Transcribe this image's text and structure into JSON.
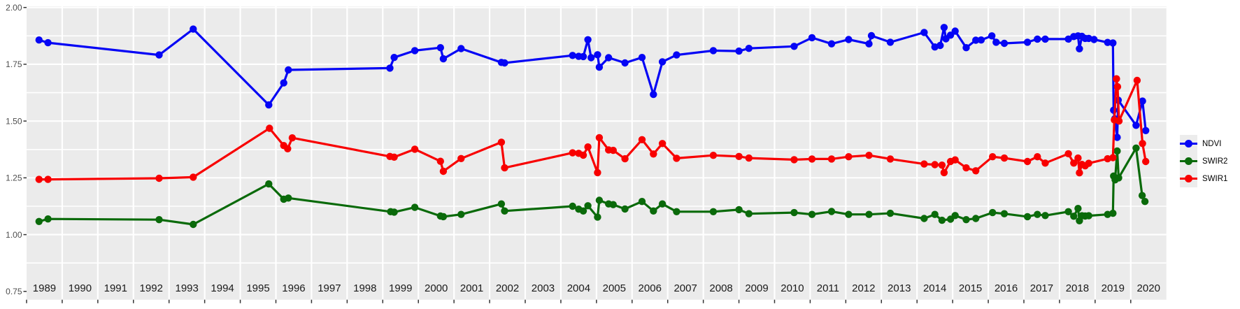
{
  "chart_data": {
    "type": "line",
    "title": "",
    "xlabel": "",
    "ylabel": "",
    "grid": true,
    "legend_position": "right",
    "x_axis": {
      "tick_labels": [
        "1989",
        "1990",
        "1991",
        "1992",
        "1993",
        "1994",
        "1995",
        "1996",
        "1997",
        "1998",
        "1999",
        "2000",
        "2001",
        "2002",
        "2003",
        "2004",
        "2005",
        "2006",
        "2007",
        "2008",
        "2009",
        "2010",
        "2011",
        "2012",
        "2013",
        "2014",
        "2015",
        "2016",
        "2017",
        "2018",
        "2019",
        "2020"
      ],
      "range": [
        1989,
        2021
      ]
    },
    "y_axis": {
      "tick_labels": [
        "2.00",
        "1.75",
        "1.50",
        "1.25",
        "1.00",
        "0.75"
      ],
      "tick_values": [
        2.0,
        1.75,
        1.5,
        1.25,
        1.0,
        0.75
      ],
      "major_gridlines": [
        2.0,
        1.75,
        1.5,
        1.25,
        1.0
      ],
      "minor_gridlines": [
        1.875,
        1.625,
        1.375,
        1.125,
        0.875
      ],
      "range": [
        0.72,
        2.0
      ]
    },
    "series": [
      {
        "name": "NDVI",
        "color": "#0505F5",
        "points": [
          [
            1989.35,
            1.857
          ],
          [
            1989.6,
            1.845
          ],
          [
            1992.72,
            1.791
          ],
          [
            1993.68,
            1.905
          ],
          [
            1995.8,
            1.571
          ],
          [
            1996.22,
            1.668
          ],
          [
            1996.35,
            1.725
          ],
          [
            1999.2,
            1.733
          ],
          [
            1999.32,
            1.78
          ],
          [
            1999.9,
            1.81
          ],
          [
            2000.62,
            1.823
          ],
          [
            2000.7,
            1.774
          ],
          [
            2001.2,
            1.819
          ],
          [
            2002.33,
            1.758
          ],
          [
            2002.42,
            1.756
          ],
          [
            2004.33,
            1.789
          ],
          [
            2004.5,
            1.785
          ],
          [
            2004.63,
            1.784
          ],
          [
            2004.76,
            1.858
          ],
          [
            2004.85,
            1.779
          ],
          [
            2005.03,
            1.792
          ],
          [
            2005.08,
            1.737
          ],
          [
            2005.34,
            1.779
          ],
          [
            2005.8,
            1.756
          ],
          [
            2006.28,
            1.78
          ],
          [
            2006.6,
            1.617
          ],
          [
            2006.85,
            1.761
          ],
          [
            2007.25,
            1.791
          ],
          [
            2008.28,
            1.81
          ],
          [
            2009.0,
            1.808
          ],
          [
            2009.28,
            1.82
          ],
          [
            2010.55,
            1.829
          ],
          [
            2011.05,
            1.867
          ],
          [
            2011.6,
            1.84
          ],
          [
            2012.08,
            1.859
          ],
          [
            2012.65,
            1.84
          ],
          [
            2012.72,
            1.876
          ],
          [
            2013.25,
            1.847
          ],
          [
            2014.2,
            1.89
          ],
          [
            2014.5,
            1.826
          ],
          [
            2014.65,
            1.833
          ],
          [
            2014.76,
            1.912
          ],
          [
            2014.81,
            1.862
          ],
          [
            2014.94,
            1.878
          ],
          [
            2015.07,
            1.896
          ],
          [
            2015.38,
            1.823
          ],
          [
            2015.65,
            1.856
          ],
          [
            2015.8,
            1.857
          ],
          [
            2016.1,
            1.875
          ],
          [
            2016.22,
            1.847
          ],
          [
            2016.45,
            1.842
          ],
          [
            2017.1,
            1.847
          ],
          [
            2017.38,
            1.861
          ],
          [
            2017.6,
            1.861
          ],
          [
            2018.25,
            1.861
          ],
          [
            2018.4,
            1.872
          ],
          [
            2018.52,
            1.875
          ],
          [
            2018.56,
            1.818
          ],
          [
            2018.63,
            1.873
          ],
          [
            2018.72,
            1.864
          ],
          [
            2018.82,
            1.864
          ],
          [
            2018.97,
            1.859
          ],
          [
            2019.35,
            1.846
          ],
          [
            2019.5,
            1.844
          ],
          [
            2019.52,
            1.548
          ],
          [
            2019.55,
            1.51
          ],
          [
            2019.62,
            1.428
          ],
          [
            2019.65,
            1.592
          ],
          [
            2020.15,
            1.481
          ],
          [
            2020.33,
            1.588
          ],
          [
            2020.42,
            1.458
          ]
        ]
      },
      {
        "name": "SWIR2",
        "color": "#0A6A0A",
        "points": [
          [
            1989.35,
            1.058
          ],
          [
            1989.6,
            1.069
          ],
          [
            1992.72,
            1.066
          ],
          [
            1993.68,
            1.045
          ],
          [
            1995.8,
            1.223
          ],
          [
            1996.22,
            1.156
          ],
          [
            1996.35,
            1.161
          ],
          [
            1999.22,
            1.101
          ],
          [
            1999.32,
            1.099
          ],
          [
            1999.9,
            1.12
          ],
          [
            2000.62,
            1.082
          ],
          [
            2000.7,
            1.079
          ],
          [
            2001.2,
            1.089
          ],
          [
            2002.33,
            1.135
          ],
          [
            2002.42,
            1.104
          ],
          [
            2004.33,
            1.125
          ],
          [
            2004.5,
            1.112
          ],
          [
            2004.63,
            1.104
          ],
          [
            2004.76,
            1.127
          ],
          [
            2005.03,
            1.077
          ],
          [
            2005.08,
            1.151
          ],
          [
            2005.34,
            1.135
          ],
          [
            2005.47,
            1.132
          ],
          [
            2005.8,
            1.113
          ],
          [
            2006.28,
            1.146
          ],
          [
            2006.6,
            1.104
          ],
          [
            2006.85,
            1.135
          ],
          [
            2007.25,
            1.101
          ],
          [
            2008.28,
            1.101
          ],
          [
            2009.0,
            1.11
          ],
          [
            2009.28,
            1.092
          ],
          [
            2010.55,
            1.097
          ],
          [
            2011.05,
            1.089
          ],
          [
            2011.6,
            1.102
          ],
          [
            2012.08,
            1.089
          ],
          [
            2012.65,
            1.089
          ],
          [
            2013.25,
            1.094
          ],
          [
            2014.2,
            1.071
          ],
          [
            2014.5,
            1.089
          ],
          [
            2014.7,
            1.063
          ],
          [
            2014.94,
            1.068
          ],
          [
            2015.07,
            1.084
          ],
          [
            2015.38,
            1.066
          ],
          [
            2015.65,
            1.071
          ],
          [
            2016.12,
            1.097
          ],
          [
            2016.45,
            1.092
          ],
          [
            2017.1,
            1.079
          ],
          [
            2017.38,
            1.089
          ],
          [
            2017.6,
            1.084
          ],
          [
            2018.25,
            1.101
          ],
          [
            2018.4,
            1.081
          ],
          [
            2018.52,
            1.115
          ],
          [
            2018.56,
            1.061
          ],
          [
            2018.63,
            1.083
          ],
          [
            2018.72,
            1.082
          ],
          [
            2018.82,
            1.083
          ],
          [
            2019.35,
            1.089
          ],
          [
            2019.5,
            1.094
          ],
          [
            2019.52,
            1.258
          ],
          [
            2019.56,
            1.241
          ],
          [
            2019.62,
            1.368
          ],
          [
            2019.66,
            1.25
          ],
          [
            2020.15,
            1.381
          ],
          [
            2020.32,
            1.172
          ],
          [
            2020.4,
            1.146
          ]
        ]
      },
      {
        "name": "SWIR1",
        "color": "#F80000",
        "points": [
          [
            1989.35,
            1.243
          ],
          [
            1989.6,
            1.243
          ],
          [
            1992.72,
            1.248
          ],
          [
            1993.68,
            1.253
          ],
          [
            1995.82,
            1.468
          ],
          [
            1996.22,
            1.392
          ],
          [
            1996.33,
            1.378
          ],
          [
            1996.46,
            1.426
          ],
          [
            1999.2,
            1.344
          ],
          [
            1999.32,
            1.341
          ],
          [
            1999.9,
            1.376
          ],
          [
            2000.62,
            1.323
          ],
          [
            2000.7,
            1.279
          ],
          [
            2001.2,
            1.335
          ],
          [
            2002.33,
            1.407
          ],
          [
            2002.42,
            1.294
          ],
          [
            2004.33,
            1.36
          ],
          [
            2004.5,
            1.358
          ],
          [
            2004.63,
            1.35
          ],
          [
            2004.76,
            1.386
          ],
          [
            2005.03,
            1.273
          ],
          [
            2005.08,
            1.427
          ],
          [
            2005.34,
            1.373
          ],
          [
            2005.47,
            1.371
          ],
          [
            2005.8,
            1.334
          ],
          [
            2006.28,
            1.418
          ],
          [
            2006.6,
            1.355
          ],
          [
            2006.85,
            1.401
          ],
          [
            2007.25,
            1.336
          ],
          [
            2008.28,
            1.349
          ],
          [
            2009.0,
            1.344
          ],
          [
            2009.28,
            1.337
          ],
          [
            2010.55,
            1.33
          ],
          [
            2011.05,
            1.333
          ],
          [
            2011.6,
            1.333
          ],
          [
            2012.08,
            1.343
          ],
          [
            2012.65,
            1.349
          ],
          [
            2013.25,
            1.333
          ],
          [
            2014.2,
            1.311
          ],
          [
            2014.5,
            1.308
          ],
          [
            2014.7,
            1.306
          ],
          [
            2014.76,
            1.273
          ],
          [
            2014.94,
            1.322
          ],
          [
            2015.07,
            1.329
          ],
          [
            2015.38,
            1.294
          ],
          [
            2015.65,
            1.281
          ],
          [
            2016.12,
            1.343
          ],
          [
            2016.45,
            1.337
          ],
          [
            2017.1,
            1.322
          ],
          [
            2017.38,
            1.343
          ],
          [
            2017.6,
            1.315
          ],
          [
            2018.25,
            1.356
          ],
          [
            2018.4,
            1.315
          ],
          [
            2018.52,
            1.337
          ],
          [
            2018.56,
            1.272
          ],
          [
            2018.63,
            1.309
          ],
          [
            2018.72,
            1.303
          ],
          [
            2018.82,
            1.314
          ],
          [
            2019.35,
            1.334
          ],
          [
            2019.5,
            1.339
          ],
          [
            2019.54,
            1.505
          ],
          [
            2019.6,
            1.686
          ],
          [
            2019.63,
            1.651
          ],
          [
            2019.67,
            1.5
          ],
          [
            2020.18,
            1.679
          ],
          [
            2020.33,
            1.401
          ],
          [
            2020.42,
            1.322
          ]
        ]
      }
    ],
    "legend_entries": [
      "NDVI",
      "SWIR2",
      "SWIR1"
    ],
    "style": {
      "panel_bg": "#EBEBEB",
      "gridline_color": "#FFFFFF",
      "tick_color": "#333333",
      "y_label_color": "#4D4D4D",
      "x_label_color": "#1A1A1A",
      "legend_key_bg": "#ECECEC",
      "legend_text_color": "#000000"
    }
  }
}
